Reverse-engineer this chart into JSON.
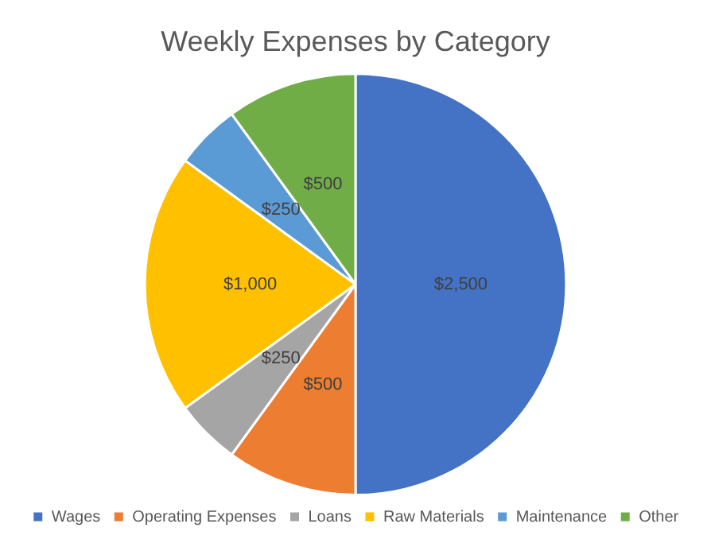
{
  "chart_data": {
    "type": "pie",
    "title": "Weekly Expenses by Category",
    "categories": [
      "Wages",
      "Operating Expenses",
      "Loans",
      "Raw Materials",
      "Maintenance",
      "Other"
    ],
    "values": [
      2500,
      500,
      250,
      1000,
      250,
      500
    ],
    "colors": [
      "#4472c4",
      "#ed7d31",
      "#a5a5a5",
      "#ffc000",
      "#5b9bd5",
      "#70ad47"
    ],
    "value_labels": [
      "$2,500",
      "$500",
      "$250",
      "$1,000",
      "$250",
      "$500"
    ],
    "legend": "bottom"
  }
}
